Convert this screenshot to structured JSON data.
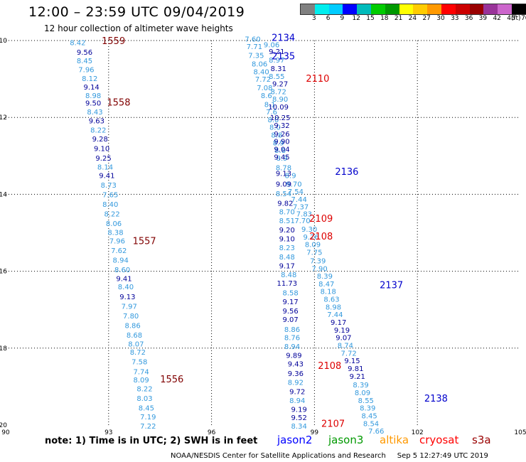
{
  "header": {
    "title": "12:00 – 23:59 UTC 09/04/2019",
    "subtitle": "12 hour collection of altimeter wave heights"
  },
  "colorbar": {
    "colors": [
      "#808080",
      "#00eeee",
      "#00ccff",
      "#0000ff",
      "#00bbbb",
      "#00cc00",
      "#009900",
      "#ffff00",
      "#ffcc00",
      "#ff9900",
      "#ff0000",
      "#cc0000",
      "#990000",
      "#993399",
      "#cc66cc",
      "#000000"
    ],
    "labels": [
      "3",
      "6",
      "9",
      "12",
      "15",
      "18",
      "21",
      "24",
      "27",
      "30",
      "33",
      "36",
      "39",
      "42",
      "45",
      "70"
    ],
    "unit": "(ft)"
  },
  "map_data": {
    "type": "geo_scatter",
    "lon_range": [
      90,
      105
    ],
    "lat_range": [
      -20,
      -10
    ],
    "xtick_values": [
      90,
      93,
      96,
      99,
      102,
      105
    ],
    "xtick_labels": [
      "90",
      "93",
      "96",
      "99",
      "102",
      "105"
    ],
    "ytick_values": [
      -10,
      -12,
      -14,
      -16,
      -18,
      -20
    ],
    "ytick_labels": [
      "-10",
      "-12",
      "-14",
      "-16",
      "-18",
      "-20"
    ],
    "grid": true,
    "colors": {
      "light": "#3399dd",
      "dark": "#000099",
      "red": "#dd0000",
      "maroon": "#800000",
      "blue": "#0000cc"
    },
    "readings": [
      {
        "lon": 92.1,
        "lat": -10.05,
        "value": "8.42",
        "color": "light"
      },
      {
        "lon": 92.3,
        "lat": -10.3,
        "value": "9.56",
        "color": "dark"
      },
      {
        "lon": 92.3,
        "lat": -10.52,
        "value": "8.45",
        "color": "light"
      },
      {
        "lon": 92.35,
        "lat": -10.75,
        "value": "7.96",
        "color": "light"
      },
      {
        "lon": 92.45,
        "lat": -10.98,
        "value": "8.12",
        "color": "light"
      },
      {
        "lon": 92.5,
        "lat": -11.2,
        "value": "9.14",
        "color": "dark"
      },
      {
        "lon": 92.55,
        "lat": -11.42,
        "value": "8.98",
        "color": "light"
      },
      {
        "lon": 92.55,
        "lat": -11.62,
        "value": "9.50",
        "color": "dark"
      },
      {
        "lon": 92.6,
        "lat": -11.85,
        "value": "8.43",
        "color": "light"
      },
      {
        "lon": 92.65,
        "lat": -12.08,
        "value": "9.63",
        "color": "dark"
      },
      {
        "lon": 92.7,
        "lat": -12.32,
        "value": "8.22",
        "color": "light"
      },
      {
        "lon": 92.75,
        "lat": -12.55,
        "value": "9.28",
        "color": "dark"
      },
      {
        "lon": 92.8,
        "lat": -12.8,
        "value": "9.10",
        "color": "dark"
      },
      {
        "lon": 92.85,
        "lat": -13.05,
        "value": "9.25",
        "color": "dark"
      },
      {
        "lon": 92.9,
        "lat": -13.28,
        "value": "8.14",
        "color": "light"
      },
      {
        "lon": 92.95,
        "lat": -13.5,
        "value": "9.41",
        "color": "dark"
      },
      {
        "lon": 93.0,
        "lat": -13.75,
        "value": "8.73",
        "color": "light"
      },
      {
        "lon": 93.05,
        "lat": -14.0,
        "value": "7.65",
        "color": "light"
      },
      {
        "lon": 93.05,
        "lat": -14.25,
        "value": "8.40",
        "color": "light"
      },
      {
        "lon": 93.1,
        "lat": -14.5,
        "value": "8.22",
        "color": "light"
      },
      {
        "lon": 93.15,
        "lat": -14.75,
        "value": "8.06",
        "color": "light"
      },
      {
        "lon": 93.2,
        "lat": -14.98,
        "value": "8.38",
        "color": "light"
      },
      {
        "lon": 93.25,
        "lat": -15.2,
        "value": "7.96",
        "color": "light"
      },
      {
        "lon": 93.3,
        "lat": -15.45,
        "value": "7.62",
        "color": "light"
      },
      {
        "lon": 93.35,
        "lat": -15.7,
        "value": "8.94",
        "color": "light"
      },
      {
        "lon": 93.4,
        "lat": -15.95,
        "value": "8.60",
        "color": "light"
      },
      {
        "lon": 93.45,
        "lat": -16.18,
        "value": "9.41",
        "color": "dark"
      },
      {
        "lon": 93.5,
        "lat": -16.4,
        "value": "8.40",
        "color": "light"
      },
      {
        "lon": 93.55,
        "lat": -16.65,
        "value": "9.13",
        "color": "dark"
      },
      {
        "lon": 93.6,
        "lat": -16.9,
        "value": "7.97",
        "color": "light"
      },
      {
        "lon": 93.65,
        "lat": -17.15,
        "value": "7.80",
        "color": "light"
      },
      {
        "lon": 93.7,
        "lat": -17.4,
        "value": "8.86",
        "color": "light"
      },
      {
        "lon": 93.75,
        "lat": -17.65,
        "value": "8.68",
        "color": "light"
      },
      {
        "lon": 93.8,
        "lat": -17.88,
        "value": "8.07",
        "color": "light"
      },
      {
        "lon": 93.85,
        "lat": -18.1,
        "value": "8.72",
        "color": "light"
      },
      {
        "lon": 93.9,
        "lat": -18.35,
        "value": "7.58",
        "color": "light"
      },
      {
        "lon": 93.95,
        "lat": -18.6,
        "value": "7.74",
        "color": "light"
      },
      {
        "lon": 93.95,
        "lat": -18.82,
        "value": "8.09",
        "color": "light"
      },
      {
        "lon": 94.05,
        "lat": -19.05,
        "value": "8.22",
        "color": "light"
      },
      {
        "lon": 94.05,
        "lat": -19.3,
        "value": "8.03",
        "color": "light"
      },
      {
        "lon": 94.1,
        "lat": -19.55,
        "value": "8.45",
        "color": "light"
      },
      {
        "lon": 94.15,
        "lat": -19.78,
        "value": "7.19",
        "color": "light"
      },
      {
        "lon": 94.15,
        "lat": -20.02,
        "value": "7.22",
        "color": "light"
      },
      {
        "lon": 97.2,
        "lat": -9.95,
        "value": "7.60",
        "color": "light"
      },
      {
        "lon": 97.25,
        "lat": -10.15,
        "value": "7.71",
        "color": "light"
      },
      {
        "lon": 97.3,
        "lat": -10.38,
        "value": "7.35",
        "color": "light"
      },
      {
        "lon": 97.4,
        "lat": -10.6,
        "value": "8.06",
        "color": "light"
      },
      {
        "lon": 97.45,
        "lat": -10.8,
        "value": "8.40",
        "color": "light"
      },
      {
        "lon": 97.5,
        "lat": -11.0,
        "value": "7.72",
        "color": "light"
      },
      {
        "lon": 97.55,
        "lat": -11.22,
        "value": "7.08",
        "color": "light"
      },
      {
        "lon": 97.6,
        "lat": -11.42,
        "value": "8.6",
        "color": "light"
      },
      {
        "lon": 97.7,
        "lat": -11.65,
        "value": "8.1",
        "color": "light"
      },
      {
        "lon": 97.75,
        "lat": -11.85,
        "value": "7.6",
        "color": "light"
      },
      {
        "lon": 97.8,
        "lat": -12.05,
        "value": "8.0",
        "color": "light"
      },
      {
        "lon": 97.85,
        "lat": -12.25,
        "value": "8.0",
        "color": "light"
      },
      {
        "lon": 97.9,
        "lat": -12.45,
        "value": "8.8",
        "color": "light"
      },
      {
        "lon": 97.95,
        "lat": -12.65,
        "value": "8.9",
        "color": "light"
      },
      {
        "lon": 98.0,
        "lat": -12.85,
        "value": "8.8",
        "color": "light"
      },
      {
        "lon": 98.05,
        "lat": -13.05,
        "value": "8.9",
        "color": "light"
      },
      {
        "lon": 98.1,
        "lat": -13.3,
        "value": "8.78",
        "color": "light"
      },
      {
        "lon": 98.3,
        "lat": -13.5,
        "value": "8.9",
        "color": "light"
      },
      {
        "lon": 98.4,
        "lat": -13.72,
        "value": "9.70",
        "color": "light"
      },
      {
        "lon": 98.45,
        "lat": -13.92,
        "value": "7.54",
        "color": "light"
      },
      {
        "lon": 98.55,
        "lat": -14.12,
        "value": "7.44",
        "color": "light"
      },
      {
        "lon": 98.6,
        "lat": -14.32,
        "value": "7.37",
        "color": "light"
      },
      {
        "lon": 98.7,
        "lat": -14.5,
        "value": "7.83",
        "color": "light"
      },
      {
        "lon": 98.65,
        "lat": -14.68,
        "value": "7.70",
        "color": "light"
      },
      {
        "lon": 98.85,
        "lat": -14.9,
        "value": "9.30",
        "color": "light"
      },
      {
        "lon": 98.9,
        "lat": -15.1,
        "value": "9.76",
        "color": "light"
      },
      {
        "lon": 98.95,
        "lat": -15.3,
        "value": "8.09",
        "color": "light"
      },
      {
        "lon": 99.0,
        "lat": -15.5,
        "value": "7.75",
        "color": "light"
      },
      {
        "lon": 99.1,
        "lat": -15.72,
        "value": "7.39",
        "color": "light"
      },
      {
        "lon": 99.15,
        "lat": -15.92,
        "value": "7.90",
        "color": "light"
      },
      {
        "lon": 99.3,
        "lat": -16.12,
        "value": "8.39",
        "color": "light"
      },
      {
        "lon": 99.35,
        "lat": -16.32,
        "value": "8.47",
        "color": "light"
      },
      {
        "lon": 99.4,
        "lat": -16.52,
        "value": "8.18",
        "color": "light"
      },
      {
        "lon": 99.5,
        "lat": -16.72,
        "value": "8.63",
        "color": "light"
      },
      {
        "lon": 99.55,
        "lat": -16.92,
        "value": "8.98",
        "color": "light"
      },
      {
        "lon": 99.6,
        "lat": -17.12,
        "value": "7.44",
        "color": "light"
      },
      {
        "lon": 99.7,
        "lat": -17.32,
        "value": "9.17",
        "color": "dark"
      },
      {
        "lon": 99.8,
        "lat": -17.52,
        "value": "9.19",
        "color": "dark"
      },
      {
        "lon": 99.85,
        "lat": -17.72,
        "value": "9.07",
        "color": "dark"
      },
      {
        "lon": 99.9,
        "lat": -17.92,
        "value": "8.74",
        "color": "light"
      },
      {
        "lon": 100.0,
        "lat": -18.12,
        "value": "7.72",
        "color": "light"
      },
      {
        "lon": 100.1,
        "lat": -18.32,
        "value": "9.15",
        "color": "dark"
      },
      {
        "lon": 100.2,
        "lat": -18.52,
        "value": "9.81",
        "color": "dark"
      },
      {
        "lon": 100.25,
        "lat": -18.72,
        "value": "9.21",
        "color": "dark"
      },
      {
        "lon": 100.35,
        "lat": -18.95,
        "value": "8.39",
        "color": "light"
      },
      {
        "lon": 100.4,
        "lat": -19.15,
        "value": "8.09",
        "color": "light"
      },
      {
        "lon": 100.5,
        "lat": -19.35,
        "value": "8.55",
        "color": "light"
      },
      {
        "lon": 100.55,
        "lat": -19.55,
        "value": "8.39",
        "color": "light"
      },
      {
        "lon": 100.6,
        "lat": -19.75,
        "value": "8.45",
        "color": "light"
      },
      {
        "lon": 100.65,
        "lat": -19.95,
        "value": "8.54",
        "color": "light"
      },
      {
        "lon": 100.8,
        "lat": -20.15,
        "value": "7.66",
        "color": "light"
      },
      {
        "lon": 97.75,
        "lat": -10.1,
        "value": "9.06",
        "color": "light"
      },
      {
        "lon": 97.9,
        "lat": -10.28,
        "value": "9.21",
        "color": "dark"
      },
      {
        "lon": 97.9,
        "lat": -10.5,
        "value": "8.97",
        "color": "light"
      },
      {
        "lon": 97.95,
        "lat": -10.72,
        "value": "8.31",
        "color": "dark"
      },
      {
        "lon": 97.9,
        "lat": -10.92,
        "value": "8.55",
        "color": "light"
      },
      {
        "lon": 98.0,
        "lat": -11.12,
        "value": "9.27",
        "color": "dark"
      },
      {
        "lon": 97.95,
        "lat": -11.32,
        "value": "8.72",
        "color": "light"
      },
      {
        "lon": 98.0,
        "lat": -11.52,
        "value": "8.90",
        "color": "light"
      },
      {
        "lon": 97.95,
        "lat": -11.72,
        "value": "10.09",
        "color": "dark"
      },
      {
        "lon": 98.0,
        "lat": -12.0,
        "value": "10.25",
        "color": "dark"
      },
      {
        "lon": 98.05,
        "lat": -12.2,
        "value": "9.32",
        "color": "dark"
      },
      {
        "lon": 98.05,
        "lat": -12.42,
        "value": "9.26",
        "color": "dark"
      },
      {
        "lon": 98.05,
        "lat": -12.62,
        "value": "9.90",
        "color": "dark"
      },
      {
        "lon": 98.05,
        "lat": -12.82,
        "value": "9.04",
        "color": "dark"
      },
      {
        "lon": 98.05,
        "lat": -13.02,
        "value": "9.45",
        "color": "dark"
      },
      {
        "lon": 98.1,
        "lat": -13.45,
        "value": "9.13",
        "color": "dark"
      },
      {
        "lon": 98.1,
        "lat": -13.72,
        "value": "9.09",
        "color": "dark"
      },
      {
        "lon": 98.1,
        "lat": -13.97,
        "value": "8.54",
        "color": "light"
      },
      {
        "lon": 98.15,
        "lat": -14.22,
        "value": "9.82",
        "color": "dark"
      },
      {
        "lon": 98.2,
        "lat": -14.45,
        "value": "8.70",
        "color": "light"
      },
      {
        "lon": 98.2,
        "lat": -14.68,
        "value": "8.51",
        "color": "light"
      },
      {
        "lon": 98.2,
        "lat": -14.92,
        "value": "9.20",
        "color": "dark"
      },
      {
        "lon": 98.2,
        "lat": -15.15,
        "value": "9.10",
        "color": "dark"
      },
      {
        "lon": 98.2,
        "lat": -15.38,
        "value": "8.23",
        "color": "light"
      },
      {
        "lon": 98.2,
        "lat": -15.62,
        "value": "8.48",
        "color": "light"
      },
      {
        "lon": 98.2,
        "lat": -15.85,
        "value": "9.17",
        "color": "dark"
      },
      {
        "lon": 98.25,
        "lat": -16.08,
        "value": "8.48",
        "color": "light"
      },
      {
        "lon": 98.2,
        "lat": -16.3,
        "value": "11.73",
        "color": "dark"
      },
      {
        "lon": 98.3,
        "lat": -16.55,
        "value": "8.58",
        "color": "light"
      },
      {
        "lon": 98.3,
        "lat": -16.78,
        "value": "9.17",
        "color": "dark"
      },
      {
        "lon": 98.3,
        "lat": -17.02,
        "value": "9.56",
        "color": "dark"
      },
      {
        "lon": 98.3,
        "lat": -17.25,
        "value": "9.07",
        "color": "dark"
      },
      {
        "lon": 98.35,
        "lat": -17.5,
        "value": "8.86",
        "color": "light"
      },
      {
        "lon": 98.35,
        "lat": -17.72,
        "value": "8.76",
        "color": "light"
      },
      {
        "lon": 98.35,
        "lat": -17.95,
        "value": "8.94",
        "color": "light"
      },
      {
        "lon": 98.4,
        "lat": -18.18,
        "value": "9.89",
        "color": "dark"
      },
      {
        "lon": 98.45,
        "lat": -18.4,
        "value": "9.43",
        "color": "dark"
      },
      {
        "lon": 98.45,
        "lat": -18.65,
        "value": "9.36",
        "color": "dark"
      },
      {
        "lon": 98.45,
        "lat": -18.88,
        "value": "8.92",
        "color": "light"
      },
      {
        "lon": 98.5,
        "lat": -19.12,
        "value": "9.72",
        "color": "dark"
      },
      {
        "lon": 98.5,
        "lat": -19.35,
        "value": "8.94",
        "color": "light"
      },
      {
        "lon": 98.55,
        "lat": -19.58,
        "value": "9.19",
        "color": "dark"
      },
      {
        "lon": 98.55,
        "lat": -19.8,
        "value": "9.52",
        "color": "dark"
      },
      {
        "lon": 98.55,
        "lat": -20.02,
        "value": "8.34",
        "color": "light"
      }
    ],
    "track_labels": [
      {
        "lon": 92.8,
        "lat": -10.0,
        "text": "1559",
        "color": "maroon"
      },
      {
        "lon": 92.95,
        "lat": -11.6,
        "text": "1558",
        "color": "maroon"
      },
      {
        "lon": 93.7,
        "lat": -15.2,
        "text": "1557",
        "color": "maroon"
      },
      {
        "lon": 94.5,
        "lat": -18.8,
        "text": "1556",
        "color": "maroon"
      },
      {
        "lon": 97.75,
        "lat": -9.92,
        "text": "2134",
        "color": "blue"
      },
      {
        "lon": 97.75,
        "lat": -10.4,
        "text": "2135",
        "color": "blue"
      },
      {
        "lon": 99.6,
        "lat": -13.4,
        "text": "2136",
        "color": "blue"
      },
      {
        "lon": 100.9,
        "lat": -16.35,
        "text": "2137",
        "color": "blue"
      },
      {
        "lon": 102.2,
        "lat": -19.3,
        "text": "2138",
        "color": "blue"
      },
      {
        "lon": 98.75,
        "lat": -10.98,
        "text": "2110",
        "color": "red"
      },
      {
        "lon": 98.85,
        "lat": -14.62,
        "text": "2109",
        "color": "red"
      },
      {
        "lon": 98.85,
        "lat": -15.08,
        "text": "2108",
        "color": "red"
      },
      {
        "lon": 99.1,
        "lat": -18.45,
        "text": "2108",
        "color": "red"
      },
      {
        "lon": 99.2,
        "lat": -19.95,
        "text": "2107",
        "color": "red"
      }
    ]
  },
  "note": {
    "text": "note: 1) Time is in UTC; 2) SWH is in feet"
  },
  "legend": [
    {
      "label": "jason2",
      "color": "#0000ff"
    },
    {
      "label": "jason3",
      "color": "#009900"
    },
    {
      "label": "altika",
      "color": "#ff9900"
    },
    {
      "label": "cryosat",
      "color": "#ff0000"
    },
    {
      "label": "s3a",
      "color": "#990000"
    }
  ],
  "footer": {
    "credit": "NOAA/NESDIS Center for Satellite Applications and Research",
    "timestamp": "Sep  5 12:27:49 UTC 2019"
  }
}
